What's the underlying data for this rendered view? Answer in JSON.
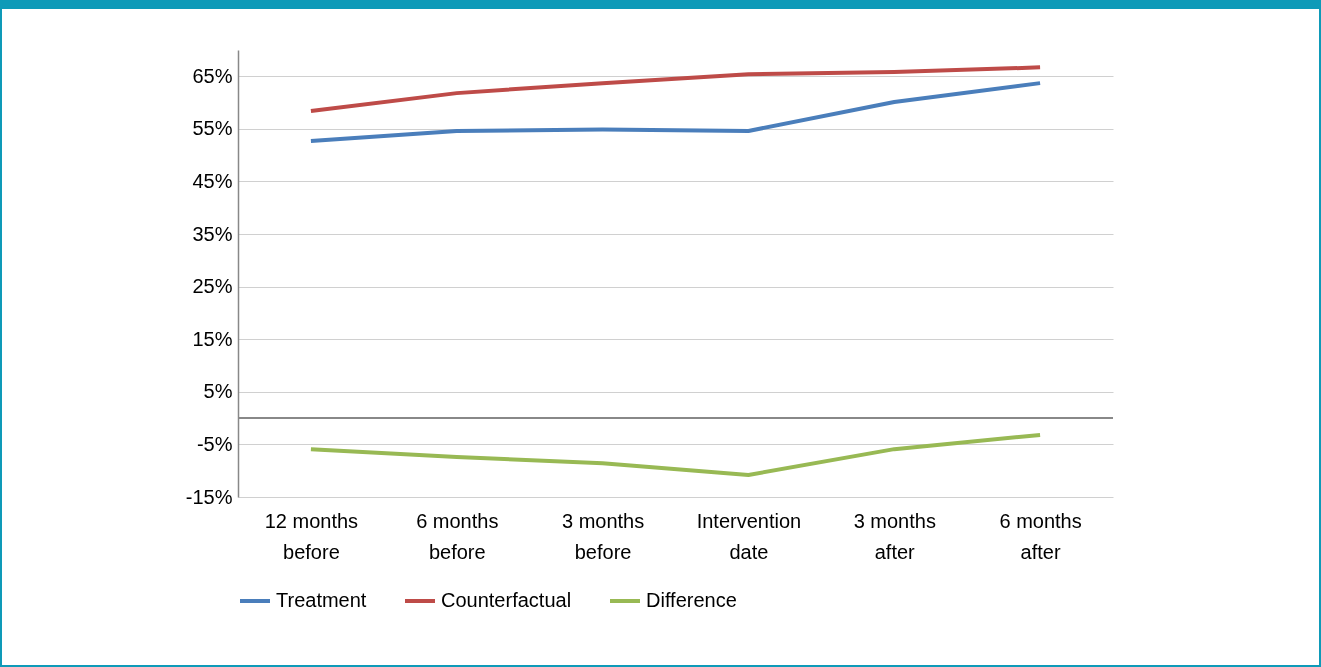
{
  "chart_data": {
    "type": "line",
    "categories": [
      "12 months\nbefore",
      "6 months\nbefore",
      "3 months\nbefore",
      "Intervention\ndate",
      "3 months\nafter",
      "6 months\nafter"
    ],
    "series": [
      {
        "name": "Treatment",
        "color": "#4a7ebb",
        "values": [
          52.7,
          54.6,
          54.9,
          54.6,
          60.1,
          63.7
        ]
      },
      {
        "name": "Counterfactual",
        "color": "#be4b48",
        "values": [
          58.4,
          61.8,
          63.7,
          65.4,
          65.8,
          66.7
        ]
      },
      {
        "name": "Difference",
        "color": "#98b954",
        "values": [
          -5.9,
          -7.4,
          -8.6,
          -10.8,
          -5.9,
          -3.2
        ]
      }
    ],
    "ylim": [
      -15,
      70
    ],
    "yticks": [
      {
        "value": -15,
        "label": "-15%"
      },
      {
        "value": -5,
        "label": "-5%"
      },
      {
        "value": 5,
        "label": "5%"
      },
      {
        "value": 15,
        "label": "15%"
      },
      {
        "value": 25,
        "label": "25%"
      },
      {
        "value": 35,
        "label": "35%"
      },
      {
        "value": 45,
        "label": "45%"
      },
      {
        "value": 55,
        "label": "55%"
      },
      {
        "value": 65,
        "label": "65%"
      }
    ],
    "grid": "y",
    "legend": "bottom",
    "marker": "none",
    "line_style": "solid"
  }
}
